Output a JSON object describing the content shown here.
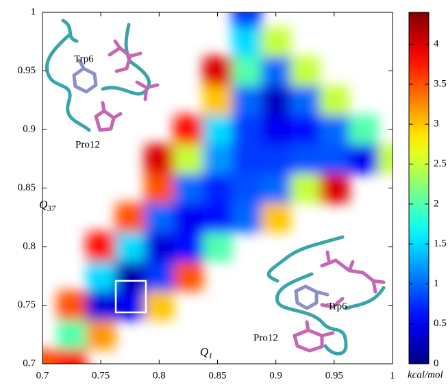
{
  "chart_data": {
    "type": "heatmap",
    "x": [
      0.7,
      0.725,
      0.75,
      0.775,
      0.8,
      0.825,
      0.85,
      0.875,
      0.9,
      0.925,
      0.95,
      0.975,
      1.0
    ],
    "y": [
      0.7,
      0.725,
      0.75,
      0.775,
      0.8,
      0.825,
      0.85,
      0.875,
      0.9,
      0.925,
      0.95,
      0.975,
      1.0
    ],
    "z": [
      [
        3.5,
        3.8,
        null,
        null,
        null,
        null,
        null,
        null,
        null,
        null,
        null,
        null,
        null
      ],
      [
        null,
        2.0,
        3.2,
        null,
        null,
        null,
        null,
        null,
        null,
        null,
        null,
        null,
        null
      ],
      [
        null,
        3.5,
        0.4,
        0.5,
        3.0,
        null,
        null,
        null,
        null,
        null,
        null,
        null,
        null
      ],
      [
        null,
        null,
        1.5,
        0.2,
        0.8,
        3.5,
        null,
        null,
        null,
        null,
        null,
        null,
        null
      ],
      [
        null,
        null,
        3.8,
        1.5,
        0.4,
        0.6,
        2.0,
        null,
        null,
        null,
        null,
        null,
        null
      ],
      [
        null,
        null,
        null,
        3.5,
        1.0,
        0.5,
        0.6,
        1.0,
        3.0,
        null,
        null,
        null,
        null
      ],
      [
        null,
        null,
        null,
        null,
        3.5,
        1.0,
        0.7,
        0.9,
        1.0,
        2.5,
        4.0,
        null,
        null
      ],
      [
        null,
        null,
        null,
        null,
        4.0,
        2.5,
        1.2,
        0.8,
        0.8,
        0.9,
        0.9,
        0.5,
        2.5
      ],
      [
        null,
        null,
        null,
        null,
        null,
        3.8,
        1.5,
        0.8,
        0.5,
        0.6,
        1.0,
        2.0,
        null
      ],
      [
        null,
        null,
        null,
        null,
        null,
        null,
        3.0,
        1.0,
        0.3,
        1.0,
        2.5,
        null,
        null
      ],
      [
        null,
        null,
        null,
        null,
        null,
        null,
        4.0,
        2.0,
        1.0,
        2.5,
        null,
        null,
        null
      ],
      [
        null,
        null,
        null,
        null,
        null,
        null,
        null,
        1.5,
        2.5,
        null,
        null,
        null,
        null
      ],
      [
        null,
        null,
        null,
        null,
        null,
        null,
        null,
        0.8,
        null,
        null,
        null,
        null,
        null
      ]
    ],
    "colormap": "jet",
    "xlim": [
      0.7,
      1
    ],
    "ylim": [
      0.7,
      1
    ],
    "xticks": [
      0.7,
      0.75,
      0.8,
      0.85,
      0.9,
      0.95,
      1
    ],
    "yticks": [
      0.7,
      0.75,
      0.8,
      0.85,
      0.9,
      0.95,
      1
    ],
    "x_label": {
      "main": "Q",
      "sub": "1"
    },
    "y_label": {
      "main": "Q",
      "sub": "37"
    },
    "colorbar": {
      "lim": [
        0,
        4.4
      ],
      "ticks": [
        0,
        0.5,
        1,
        1.5,
        2,
        2.5,
        3,
        3.5,
        4
      ],
      "label": "kcal/mol"
    },
    "annotations": [
      "Trp6",
      "Pro12",
      "Trp6",
      "Pro12"
    ]
  }
}
